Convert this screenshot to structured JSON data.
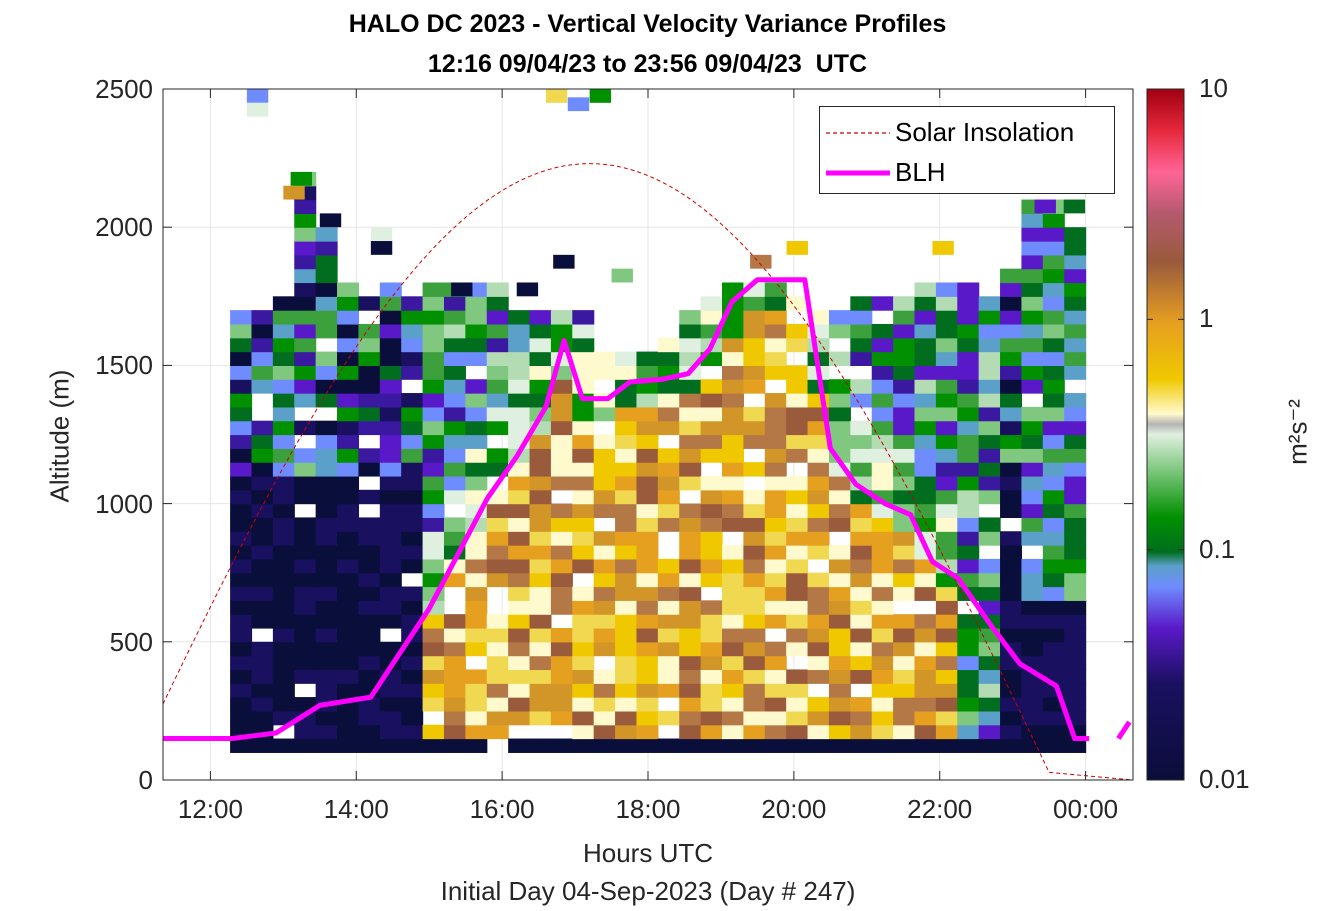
{
  "title_line1": "HALO DC 2023 - Vertical Velocity Variance Profiles",
  "title_line2": "12:16 09/04/23 to 23:56 09/04/23  UTC",
  "xlabel": "Hours UTC",
  "subxlabel": "Initial Day 04-Sep-2023 (Day # 247)",
  "ylabel": "Altitude (m)",
  "colorbar_label": "m²s⁻²",
  "legend": [
    {
      "label": "Solar Insolation",
      "color": "#cc0000",
      "style": "dashed"
    },
    {
      "label": "BLH",
      "color": "#ff00ff",
      "style": "solid"
    }
  ],
  "chart_data": {
    "type": "heatmap",
    "title": "HALO DC 2023 - Vertical Velocity Variance Profiles",
    "subtitle": "12:16 09/04/23 to 23:56 09/04/23  UTC",
    "xlabel": "Hours UTC",
    "ylabel": "Altitude (m)",
    "xlim": [
      11.35,
      24.65
    ],
    "ylim": [
      0,
      2500
    ],
    "x_ticks": [
      12,
      14,
      16,
      18,
      20,
      22,
      24
    ],
    "x_tick_labels": [
      "12:00",
      "14:00",
      "16:00",
      "18:00",
      "20:00",
      "22:00",
      "00:00"
    ],
    "y_ticks": [
      0,
      500,
      1000,
      1500,
      2000,
      2500
    ],
    "y_tick_labels": [
      "0",
      "500",
      "1000",
      "1500",
      "2000",
      "2500"
    ],
    "grid": true,
    "legend_position": "top-right",
    "colorbar": {
      "label": "m²s⁻²",
      "scale": "log",
      "range": [
        0.01,
        10
      ],
      "ticks": [
        0.01,
        0.1,
        1,
        10
      ],
      "tick_labels": [
        "0.01",
        "0.1",
        "1",
        "10"
      ]
    },
    "heatmap_profile": {
      "description_of_dominant_values": "variance in m^2 s^-2 by time column",
      "time_start_hours": 12.27,
      "time_end_hours": 24.0,
      "ground_row_altitude_m": 110,
      "low_variance_tops_m": [
        1700,
        1700,
        1730,
        2200,
        2000,
        1800,
        1750,
        1800,
        1720,
        1780,
        1800,
        1800,
        1800,
        1700,
        1700,
        1700,
        1700,
        1600,
        1550,
        1550,
        1600,
        1700,
        1750,
        1800,
        1800,
        1800,
        1750,
        1700,
        1700,
        1750,
        1750,
        1750,
        1800,
        1800,
        1800,
        1800,
        1850,
        2100,
        2100,
        2000
      ]
    },
    "series": [
      {
        "name": "BLH",
        "x": [
          11.35,
          12.3,
          12.9,
          13.5,
          14.2,
          14.5,
          15.0,
          15.4,
          15.8,
          16.2,
          16.6,
          16.85,
          17.1,
          17.45,
          17.75,
          18.2,
          18.55,
          18.85,
          19.15,
          19.5,
          19.8,
          20.15,
          20.5,
          20.85,
          21.25,
          21.6,
          21.9,
          22.25,
          22.7,
          23.1,
          23.6,
          23.85,
          24.05
        ],
        "y": [
          150,
          150,
          170,
          270,
          300,
          420,
          620,
          820,
          1020,
          1170,
          1350,
          1590,
          1380,
          1380,
          1440,
          1450,
          1470,
          1560,
          1730,
          1810,
          1810,
          1810,
          1200,
          1070,
          1000,
          960,
          790,
          730,
          560,
          420,
          340,
          150,
          150
        ]
      },
      {
        "name": "Solar Insolation",
        "type": "line",
        "style": "dashed",
        "x_range": [
          11.35,
          23.55
        ],
        "peak_x": 17.2,
        "peak_y": 2230,
        "description": "half-sine shaped diurnal curve from sunrise to sunset; zero after 23.55 to 24.65"
      }
    ]
  }
}
